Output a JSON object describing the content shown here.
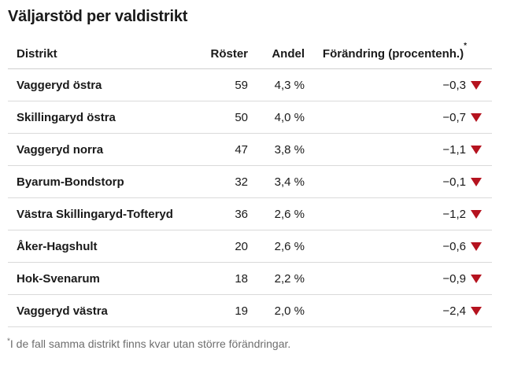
{
  "title": "Väljarstöd per valdistrikt",
  "table": {
    "columns": [
      {
        "label": "Distrikt"
      },
      {
        "label": "Röster"
      },
      {
        "label": "Andel"
      },
      {
        "label": "Förändring (procentenh.)",
        "note_marker": "*"
      }
    ],
    "rows": [
      {
        "district": "Vaggeryd östra",
        "votes": "59",
        "share": "4,3 %",
        "change": "−0,3",
        "trend": "down"
      },
      {
        "district": "Skillingaryd östra",
        "votes": "50",
        "share": "4,0 %",
        "change": "−0,7",
        "trend": "down"
      },
      {
        "district": "Vaggeryd norra",
        "votes": "47",
        "share": "3,8 %",
        "change": "−1,1",
        "trend": "down"
      },
      {
        "district": "Byarum-Bondstorp",
        "votes": "32",
        "share": "3,4 %",
        "change": "−0,1",
        "trend": "down"
      },
      {
        "district": "Västra Skillingaryd-Tofteryd",
        "votes": "36",
        "share": "2,6 %",
        "change": "−1,2",
        "trend": "down"
      },
      {
        "district": "Åker-Hagshult",
        "votes": "20",
        "share": "2,6 %",
        "change": "−0,6",
        "trend": "down"
      },
      {
        "district": "Hok-Svenarum",
        "votes": "18",
        "share": "2,2 %",
        "change": "−0,9",
        "trend": "down"
      },
      {
        "district": "Vaggeryd västra",
        "votes": "19",
        "share": "2,0 %",
        "change": "−2,4",
        "trend": "down"
      }
    ]
  },
  "footnote": {
    "marker": "*",
    "text": "I de fall samma distrikt finns kvar utan större förändringar."
  },
  "colors": {
    "negative_trend": "#b5131f",
    "header_divider": "#cfcfcf",
    "row_divider": "#dadada",
    "text": "#1a1a1a",
    "footnote_text": "#6e6e6e"
  },
  "icons": {
    "trend_down": "down-triangle"
  },
  "chart_data": {
    "type": "table",
    "title": "Väljarstöd per valdistrikt",
    "columns": [
      "Distrikt",
      "Röster",
      "Andel (%)",
      "Förändring (procentenh.)"
    ],
    "rows": [
      [
        "Vaggeryd östra",
        59,
        4.3,
        -0.3
      ],
      [
        "Skillingaryd östra",
        50,
        4.0,
        -0.7
      ],
      [
        "Vaggeryd norra",
        47,
        3.8,
        -1.1
      ],
      [
        "Byarum-Bondstorp",
        32,
        3.4,
        -0.1
      ],
      [
        "Västra Skillingaryd-Tofteryd",
        36,
        2.6,
        -1.2
      ],
      [
        "Åker-Hagshult",
        20,
        2.6,
        -0.6
      ],
      [
        "Hok-Svenarum",
        18,
        2.2,
        -0.9
      ],
      [
        "Vaggeryd västra",
        19,
        2.0,
        -2.4
      ]
    ],
    "footnote": "I de fall samma distrikt finns kvar utan större förändringar.",
    "annotations": "Alla förändringsvärden är negativa och markeras med en röd nedåtpil"
  }
}
